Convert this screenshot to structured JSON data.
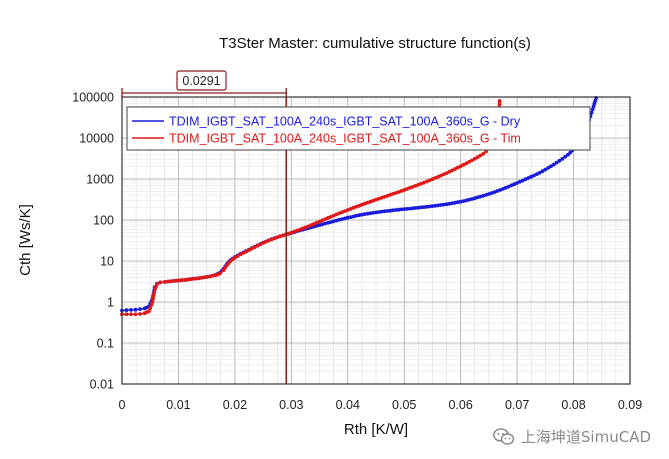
{
  "chart_data": {
    "type": "scatter",
    "title": "T3Ster Master: cumulative structure function(s)",
    "xlabel": "Rth  [K/W]",
    "ylabel": "Cth  [Ws/K]",
    "xlim": [
      0,
      0.09
    ],
    "ylim": [
      0.01,
      100000
    ],
    "yscale": "log",
    "grid": true,
    "legend_position": "top",
    "x_ticks": [
      "0",
      "0.01",
      "0.02",
      "0.03",
      "0.04",
      "0.05",
      "0.06",
      "0.07",
      "0.08",
      "0.09"
    ],
    "y_ticks": [
      "0.01",
      "0.1",
      "1",
      "10",
      "100",
      "1000",
      "10000",
      "100000"
    ],
    "cursor": {
      "x": 0.0291,
      "label": "0.0291"
    },
    "series": [
      {
        "name": "TDIM_IGBT_SAT_100A_240s_IGBT_SAT_100A_360s_G - Dry",
        "color": "#1a1adb",
        "points": [
          [
            0.0,
            0.62
          ],
          [
            0.0008,
            0.63
          ],
          [
            0.0016,
            0.64
          ],
          [
            0.0024,
            0.65
          ],
          [
            0.0032,
            0.67
          ],
          [
            0.004,
            0.7
          ],
          [
            0.0048,
            0.78
          ],
          [
            0.0054,
            1.2
          ],
          [
            0.0058,
            2.3
          ],
          [
            0.0062,
            2.8
          ],
          [
            0.0068,
            3.0
          ],
          [
            0.0076,
            3.1
          ],
          [
            0.0086,
            3.2
          ],
          [
            0.0096,
            3.3
          ],
          [
            0.0106,
            3.4
          ],
          [
            0.0116,
            3.5
          ],
          [
            0.0126,
            3.7
          ],
          [
            0.0136,
            3.8
          ],
          [
            0.0146,
            4.0
          ],
          [
            0.0156,
            4.2
          ],
          [
            0.0166,
            4.6
          ],
          [
            0.0174,
            5.2
          ],
          [
            0.018,
            6.5
          ],
          [
            0.0186,
            8.5
          ],
          [
            0.0192,
            10.5
          ],
          [
            0.02,
            12.5
          ],
          [
            0.021,
            15
          ],
          [
            0.022,
            17.5
          ],
          [
            0.023,
            20.5
          ],
          [
            0.024,
            24
          ],
          [
            0.025,
            28
          ],
          [
            0.026,
            32
          ],
          [
            0.027,
            36
          ],
          [
            0.028,
            40
          ],
          [
            0.029,
            44
          ],
          [
            0.03,
            48
          ],
          [
            0.031,
            53
          ],
          [
            0.032,
            58
          ],
          [
            0.033,
            63
          ],
          [
            0.034,
            69
          ],
          [
            0.035,
            75
          ],
          [
            0.036,
            82
          ],
          [
            0.037,
            89
          ],
          [
            0.038,
            97
          ],
          [
            0.039,
            105
          ],
          [
            0.04,
            114
          ],
          [
            0.041,
            122
          ],
          [
            0.042,
            131
          ],
          [
            0.043,
            139
          ],
          [
            0.044,
            146
          ],
          [
            0.045,
            153
          ],
          [
            0.046,
            160
          ],
          [
            0.047,
            166
          ],
          [
            0.048,
            172
          ],
          [
            0.049,
            178
          ],
          [
            0.05,
            184
          ],
          [
            0.051,
            190
          ],
          [
            0.052,
            196
          ],
          [
            0.053,
            203
          ],
          [
            0.054,
            210
          ],
          [
            0.055,
            218
          ],
          [
            0.056,
            227
          ],
          [
            0.057,
            237
          ],
          [
            0.058,
            249
          ],
          [
            0.059,
            263
          ],
          [
            0.06,
            280
          ],
          [
            0.061,
            300
          ],
          [
            0.062,
            325
          ],
          [
            0.063,
            355
          ],
          [
            0.064,
            390
          ],
          [
            0.065,
            430
          ],
          [
            0.066,
            480
          ],
          [
            0.067,
            540
          ],
          [
            0.068,
            610
          ],
          [
            0.069,
            700
          ],
          [
            0.07,
            800
          ],
          [
            0.071,
            920
          ],
          [
            0.072,
            1060
          ],
          [
            0.073,
            1220
          ],
          [
            0.074,
            1420
          ],
          [
            0.075,
            1700
          ],
          [
            0.076,
            2050
          ],
          [
            0.077,
            2500
          ],
          [
            0.078,
            3100
          ],
          [
            0.079,
            3900
          ],
          [
            0.0798,
            5000
          ],
          [
            0.0805,
            6500
          ],
          [
            0.081,
            8500
          ],
          [
            0.0815,
            11500
          ],
          [
            0.082,
            16000
          ],
          [
            0.0825,
            23000
          ],
          [
            0.083,
            34000
          ],
          [
            0.0834,
            50000
          ],
          [
            0.0837,
            70000
          ],
          [
            0.084,
            95000
          ]
        ]
      },
      {
        "name": "TDIM_IGBT_SAT_100A_240s_IGBT_SAT_100A_360s_G - Tim",
        "color": "#e01818",
        "points": [
          [
            0.0,
            0.5
          ],
          [
            0.0008,
            0.5
          ],
          [
            0.0016,
            0.5
          ],
          [
            0.0024,
            0.5
          ],
          [
            0.0032,
            0.51
          ],
          [
            0.004,
            0.53
          ],
          [
            0.0048,
            0.6
          ],
          [
            0.0054,
            1.0
          ],
          [
            0.0058,
            2.0
          ],
          [
            0.0062,
            2.7
          ],
          [
            0.0068,
            3.0
          ],
          [
            0.0076,
            3.1
          ],
          [
            0.0086,
            3.2
          ],
          [
            0.0096,
            3.3
          ],
          [
            0.0106,
            3.4
          ],
          [
            0.0116,
            3.5
          ],
          [
            0.0126,
            3.65
          ],
          [
            0.0136,
            3.8
          ],
          [
            0.0146,
            4.0
          ],
          [
            0.0156,
            4.2
          ],
          [
            0.0166,
            4.5
          ],
          [
            0.0174,
            5.0
          ],
          [
            0.018,
            6.0
          ],
          [
            0.0186,
            8.0
          ],
          [
            0.0192,
            10.0
          ],
          [
            0.02,
            12
          ],
          [
            0.021,
            14.5
          ],
          [
            0.022,
            17
          ],
          [
            0.023,
            20
          ],
          [
            0.024,
            23.5
          ],
          [
            0.025,
            27.5
          ],
          [
            0.026,
            31.5
          ],
          [
            0.027,
            35.5
          ],
          [
            0.028,
            40
          ],
          [
            0.029,
            44
          ],
          [
            0.03,
            49
          ],
          [
            0.031,
            55
          ],
          [
            0.032,
            62
          ],
          [
            0.033,
            70
          ],
          [
            0.034,
            80
          ],
          [
            0.035,
            92
          ],
          [
            0.036,
            105
          ],
          [
            0.037,
            120
          ],
          [
            0.038,
            137
          ],
          [
            0.039,
            155
          ],
          [
            0.04,
            175
          ],
          [
            0.041,
            198
          ],
          [
            0.042,
            222
          ],
          [
            0.043,
            250
          ],
          [
            0.044,
            280
          ],
          [
            0.045,
            312
          ],
          [
            0.046,
            348
          ],
          [
            0.047,
            388
          ],
          [
            0.048,
            432
          ],
          [
            0.049,
            482
          ],
          [
            0.05,
            540
          ],
          [
            0.051,
            605
          ],
          [
            0.052,
            680
          ],
          [
            0.053,
            770
          ],
          [
            0.054,
            870
          ],
          [
            0.055,
            990
          ],
          [
            0.056,
            1130
          ],
          [
            0.057,
            1300
          ],
          [
            0.058,
            1500
          ],
          [
            0.059,
            1750
          ],
          [
            0.06,
            2050
          ],
          [
            0.061,
            2400
          ],
          [
            0.062,
            2850
          ],
          [
            0.063,
            3400
          ],
          [
            0.064,
            4100
          ],
          [
            0.0645,
            4700
          ],
          [
            0.065,
            5600
          ],
          [
            0.0655,
            7000
          ],
          [
            0.066,
            9500
          ],
          [
            0.0663,
            13000
          ],
          [
            0.0666,
            20000
          ],
          [
            0.0668,
            40000
          ],
          [
            0.0669,
            80000
          ]
        ]
      }
    ]
  },
  "watermark": {
    "text": "上海坤道SimuCAD",
    "icon": "wechat-icon"
  }
}
